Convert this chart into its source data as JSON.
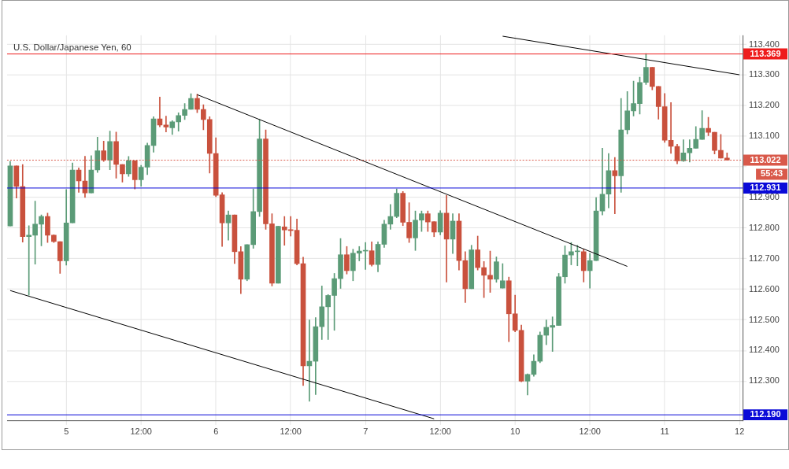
{
  "chart_data": {
    "type": "candlestick",
    "title": "U.S. Dollar/Japanese Yen, 60",
    "categories": [
      null,
      null,
      null,
      null,
      null,
      null,
      null,
      null,
      null,
      "5",
      null,
      null,
      null,
      null,
      null,
      null,
      null,
      null,
      null,
      null,
      null,
      "12:00",
      null,
      null,
      null,
      null,
      null,
      null,
      null,
      null,
      null,
      null,
      null,
      "6",
      null,
      null,
      null,
      null,
      null,
      null,
      null,
      null,
      null,
      null,
      null,
      "12:00",
      null,
      null,
      null,
      null,
      null,
      null,
      null,
      null,
      null,
      null,
      null,
      "7",
      null,
      null,
      null,
      null,
      null,
      null,
      null,
      null,
      null,
      null,
      null,
      "12:00",
      null,
      null,
      null,
      null,
      null,
      null,
      null,
      null,
      null,
      null,
      null,
      "10",
      null,
      null,
      null,
      null,
      null,
      null,
      null,
      null,
      null,
      null,
      null,
      "12:00",
      null,
      null,
      null,
      null,
      null,
      null,
      null,
      null,
      null,
      null,
      null,
      "11",
      null,
      null,
      null,
      null,
      null,
      null,
      null,
      null,
      null,
      null,
      null,
      "12"
    ],
    "ohlc": [
      [
        112.807,
        113.018,
        112.807,
        113.003
      ],
      [
        113.003,
        113.003,
        112.898,
        112.936
      ],
      [
        112.936,
        113.008,
        112.754,
        112.772
      ],
      [
        112.772,
        112.808,
        112.581,
        112.777
      ],
      [
        112.777,
        112.888,
        112.682,
        112.813
      ],
      [
        112.813,
        112.843,
        112.742,
        112.838
      ],
      [
        112.838,
        112.849,
        112.753,
        112.777
      ],
      [
        112.777,
        112.778,
        112.753,
        112.756
      ],
      [
        112.756,
        112.756,
        112.652,
        112.693
      ],
      [
        112.693,
        112.926,
        112.679,
        112.817
      ],
      [
        112.817,
        113.013,
        112.817,
        112.99
      ],
      [
        112.99,
        112.997,
        112.917,
        112.954
      ],
      [
        112.954,
        113.035,
        112.9,
        112.915
      ],
      [
        112.915,
        113.037,
        112.915,
        112.99
      ],
      [
        112.99,
        113.097,
        112.982,
        113.053
      ],
      [
        113.053,
        113.084,
        113.018,
        113.022
      ],
      [
        113.022,
        113.117,
        112.991,
        113.083
      ],
      [
        113.083,
        113.114,
        112.963,
        113.008
      ],
      [
        113.008,
        113.008,
        112.95,
        112.977
      ],
      [
        112.977,
        113.034,
        112.969,
        113.02
      ],
      [
        113.02,
        113.02,
        112.928,
        112.958
      ],
      [
        112.958,
        113.005,
        112.937,
        112.999
      ],
      [
        112.999,
        113.078,
        112.975,
        113.07
      ],
      [
        113.07,
        113.164,
        113.048,
        113.157
      ],
      [
        113.157,
        113.228,
        113.131,
        113.137
      ],
      [
        113.137,
        113.166,
        113.114,
        113.13
      ],
      [
        113.128,
        113.151,
        113.106,
        113.147
      ],
      [
        113.147,
        113.177,
        113.117,
        113.168
      ],
      [
        113.168,
        113.207,
        113.155,
        113.188
      ],
      [
        113.188,
        113.239,
        113.188,
        113.224
      ],
      [
        113.224,
        113.237,
        113.177,
        113.188
      ],
      [
        113.188,
        113.203,
        113.121,
        113.155
      ],
      [
        113.155,
        113.164,
        112.98,
        113.044
      ],
      [
        113.044,
        113.095,
        112.903,
        112.907
      ],
      [
        112.909,
        112.916,
        112.74,
        112.817
      ],
      [
        112.817,
        112.856,
        112.761,
        112.843
      ],
      [
        112.843,
        112.843,
        112.684,
        112.723
      ],
      [
        112.723,
        112.74,
        112.586,
        112.633
      ],
      [
        112.633,
        112.746,
        112.628,
        112.746
      ],
      [
        112.746,
        112.928,
        112.734,
        112.854
      ],
      [
        112.854,
        113.155,
        112.838,
        113.091
      ],
      [
        113.091,
        113.121,
        112.796,
        112.814
      ],
      [
        112.814,
        112.847,
        112.611,
        112.62
      ],
      [
        112.62,
        112.806,
        112.62,
        112.806
      ],
      [
        112.804,
        112.838,
        112.744,
        112.794
      ],
      [
        112.795,
        112.838,
        112.774,
        112.792
      ],
      [
        112.793,
        112.83,
        112.68,
        112.684
      ],
      [
        112.684,
        112.705,
        112.286,
        112.35
      ],
      [
        112.35,
        112.5,
        112.234,
        112.365
      ],
      [
        112.365,
        112.508,
        112.256,
        112.478
      ],
      [
        112.478,
        112.611,
        112.436,
        112.543
      ],
      [
        112.543,
        112.583,
        112.436,
        112.58
      ],
      [
        112.58,
        112.652,
        112.466,
        112.635
      ],
      [
        112.635,
        112.766,
        112.603,
        112.713
      ],
      [
        112.713,
        112.74,
        112.65,
        112.661
      ],
      [
        112.661,
        112.731,
        112.628,
        112.718
      ],
      [
        112.718,
        112.74,
        112.693,
        112.725
      ],
      [
        112.725,
        112.753,
        112.665,
        112.726
      ],
      [
        112.726,
        112.755,
        112.676,
        112.681
      ],
      [
        112.681,
        112.755,
        112.657,
        112.747
      ],
      [
        112.747,
        112.826,
        112.737,
        112.813
      ],
      [
        112.813,
        112.877,
        112.796,
        112.838
      ],
      [
        112.838,
        112.928,
        112.834,
        112.914
      ],
      [
        112.914,
        112.92,
        112.808,
        112.819
      ],
      [
        112.819,
        112.883,
        112.753,
        112.768
      ],
      [
        112.768,
        112.856,
        112.727,
        112.826
      ],
      [
        112.826,
        112.856,
        112.789,
        112.847
      ],
      [
        112.847,
        112.856,
        112.789,
        112.82
      ],
      [
        112.821,
        112.821,
        112.772,
        112.787
      ],
      [
        112.787,
        112.857,
        112.778,
        112.849
      ],
      [
        112.849,
        112.907,
        112.624,
        112.764
      ],
      [
        112.764,
        112.847,
        112.717,
        112.823
      ],
      [
        112.823,
        112.847,
        112.663,
        112.694
      ],
      [
        112.694,
        112.723,
        112.557,
        112.602
      ],
      [
        112.602,
        112.744,
        112.602,
        112.729
      ],
      [
        112.729,
        112.774,
        112.663,
        112.671
      ],
      [
        112.671,
        112.691,
        112.573,
        112.646
      ],
      [
        112.646,
        112.725,
        112.59,
        112.633
      ],
      [
        112.633,
        112.706,
        112.623,
        112.69
      ],
      [
        112.604,
        112.684,
        112.604,
        112.628
      ],
      [
        112.628,
        112.64,
        112.429,
        112.52
      ],
      [
        112.52,
        112.581,
        112.461,
        112.466
      ],
      [
        112.466,
        112.483,
        112.298,
        112.3
      ],
      [
        112.3,
        112.324,
        112.255,
        112.322
      ],
      [
        112.322,
        112.386,
        112.316,
        112.365
      ],
      [
        112.365,
        112.461,
        112.36,
        112.45
      ],
      [
        112.45,
        112.5,
        112.419,
        112.476
      ],
      [
        112.476,
        112.51,
        112.397,
        112.482
      ],
      [
        112.482,
        112.652,
        112.482,
        112.641
      ],
      [
        112.641,
        112.742,
        112.62,
        112.712
      ],
      [
        112.712,
        112.753,
        112.68,
        112.723
      ],
      [
        112.723,
        112.744,
        112.677,
        112.723
      ],
      [
        112.723,
        112.731,
        112.624,
        112.661
      ],
      [
        112.661,
        112.717,
        112.604,
        112.694
      ],
      [
        112.694,
        112.9,
        112.694,
        112.856
      ],
      [
        112.856,
        113.061,
        112.843,
        112.911
      ],
      [
        112.911,
        113.044,
        112.866,
        112.988
      ],
      [
        112.988,
        113.031,
        112.847,
        112.971
      ],
      [
        112.971,
        113.224,
        112.917,
        113.121
      ],
      [
        113.121,
        113.246,
        113.108,
        113.183
      ],
      [
        113.183,
        113.28,
        113.166,
        113.207
      ],
      [
        113.207,
        113.293,
        113.173,
        113.276
      ],
      [
        113.276,
        113.37,
        113.269,
        113.325
      ],
      [
        113.325,
        113.325,
        113.252,
        113.263
      ],
      [
        113.263,
        113.263,
        113.156,
        113.197
      ],
      [
        113.197,
        113.24,
        113.08,
        113.087
      ],
      [
        113.087,
        113.21,
        113.044,
        113.067
      ],
      [
        113.067,
        113.074,
        113.01,
        113.02
      ],
      [
        113.02,
        113.089,
        113.018,
        113.046
      ],
      [
        113.046,
        113.089,
        113.016,
        113.061
      ],
      [
        113.061,
        113.132,
        113.061,
        113.09
      ],
      [
        113.09,
        113.184,
        113.09,
        113.126
      ],
      [
        113.126,
        113.162,
        113.102,
        113.113
      ],
      [
        113.113,
        113.113,
        113.042,
        113.054
      ],
      [
        113.054,
        113.106,
        113.029,
        113.029
      ],
      [
        113.029,
        113.046,
        113.022,
        113.022
      ],
      null,
      null
    ],
    "colors": [
      "#5b9b77",
      "#c9513d",
      "#c9513d",
      "#5b9b77",
      "#5b9b77",
      "#5b9b77",
      "#c9513d",
      "#c9513d",
      "#c9513d",
      "#5b9b77",
      "#5b9b77",
      "#c9513d",
      "#c9513d",
      "#5b9b77",
      "#5b9b77",
      "#c9513d",
      "#5b9b77",
      "#c9513d",
      "#c9513d",
      "#5b9b77",
      "#c9513d",
      "#5b9b77",
      "#5b9b77",
      "#5b9b77",
      "#c9513d",
      "#c9513d",
      "#5b9b77",
      "#5b9b77",
      "#5b9b77",
      "#5b9b77",
      "#c9513d",
      "#c9513d",
      "#c9513d",
      "#c9513d",
      "#c9513d",
      "#5b9b77",
      "#c9513d",
      "#c9513d",
      "#5b9b77",
      "#5b9b77",
      "#5b9b77",
      "#c9513d",
      "#c9513d",
      "#5b9b77",
      "#c9513d",
      "#c9513d",
      "#c9513d",
      "#c9513d",
      "#5b9b77",
      "#5b9b77",
      "#5b9b77",
      "#5b9b77",
      "#5b9b77",
      "#5b9b77",
      "#c9513d",
      "#5b9b77",
      "#5b9b77",
      "#5b9b77",
      "#c9513d",
      "#5b9b77",
      "#5b9b77",
      "#5b9b77",
      "#5b9b77",
      "#c9513d",
      "#c9513d",
      "#5b9b77",
      "#5b9b77",
      "#c9513d",
      "#c9513d",
      "#5b9b77",
      "#c9513d",
      "#5b9b77",
      "#c9513d",
      "#c9513d",
      "#5b9b77",
      "#c9513d",
      "#c9513d",
      "#c9513d",
      "#5b9b77",
      "#5b9b77",
      "#c9513d",
      "#c9513d",
      "#c9513d",
      "#5b9b77",
      "#5b9b77",
      "#5b9b77",
      "#5b9b77",
      "#5b9b77",
      "#5b9b77",
      "#5b9b77",
      "#5b9b77",
      "#5b9b77",
      "#c9513d",
      "#5b9b77",
      "#5b9b77",
      "#5b9b77",
      "#5b9b77",
      "#c9513d",
      "#5b9b77",
      "#5b9b77",
      "#5b9b77",
      "#5b9b77",
      "#5b9b77",
      "#c9513d",
      "#c9513d",
      "#c9513d",
      "#c9513d",
      "#c9513d",
      "#5b9b77",
      "#5b9b77",
      "#5b9b77",
      "#5b9b77",
      "#c9513d",
      "#c9513d",
      "#c9513d",
      "#c9513d",
      null,
      null
    ],
    "series": [
      {
        "type": "line",
        "color": "#000000",
        "values": [
          null,
          null,
          null,
          null,
          null,
          null,
          null,
          null,
          null,
          null,
          null,
          null,
          null,
          null,
          null,
          null,
          null,
          null,
          null,
          null,
          null,
          null,
          null,
          null,
          null,
          null,
          null,
          null,
          null,
          null,
          null,
          null,
          null,
          null,
          null,
          null,
          null,
          null,
          null,
          null,
          null,
          null,
          null,
          null,
          null,
          null,
          null,
          null,
          null,
          null,
          null,
          null,
          null,
          null,
          null,
          null,
          null,
          null,
          null,
          null,
          null,
          null,
          null,
          null,
          null,
          null,
          null,
          null,
          null,
          null,
          null,
          null,
          null,
          null,
          null,
          null,
          null,
          null,
          null,
          113.427,
          null,
          null,
          null,
          null,
          null,
          null,
          null,
          null,
          null,
          null,
          null,
          null,
          null,
          null,
          null,
          null,
          null,
          null,
          null,
          null,
          null,
          null,
          null,
          null,
          null,
          null,
          null,
          null,
          null,
          null,
          null,
          null,
          null,
          null,
          null,
          null,
          null,
          113.301
        ]
      },
      {
        "type": "line",
        "color": "#000000",
        "values": [
          null,
          null,
          null,
          null,
          null,
          null,
          null,
          null,
          null,
          null,
          null,
          null,
          null,
          null,
          null,
          null,
          null,
          null,
          null,
          null,
          null,
          null,
          null,
          null,
          null,
          null,
          null,
          null,
          null,
          null,
          113.236,
          null,
          null,
          null,
          null,
          null,
          null,
          null,
          null,
          null,
          null,
          null,
          null,
          null,
          null,
          null,
          null,
          null,
          null,
          null,
          null,
          null,
          null,
          null,
          null,
          null,
          null,
          null,
          null,
          null,
          null,
          null,
          null,
          null,
          null,
          null,
          null,
          null,
          null,
          null,
          null,
          null,
          null,
          null,
          null,
          null,
          null,
          null,
          null,
          null,
          null,
          null,
          null,
          null,
          null,
          null,
          null,
          null,
          null,
          null,
          null,
          null,
          null,
          null,
          null,
          null,
          null,
          null,
          null,
          112.675,
          null,
          null,
          null,
          null,
          null,
          null,
          null,
          null,
          null,
          null,
          null,
          null,
          null,
          null,
          null,
          null,
          null,
          null
        ]
      },
      {
        "type": "line",
        "color": "#000000",
        "values": [
          112.596,
          null,
          null,
          null,
          null,
          null,
          null,
          null,
          null,
          null,
          null,
          null,
          null,
          null,
          null,
          null,
          null,
          null,
          null,
          null,
          null,
          null,
          null,
          null,
          null,
          null,
          null,
          null,
          null,
          null,
          null,
          null,
          null,
          null,
          null,
          null,
          null,
          null,
          null,
          null,
          null,
          null,
          null,
          null,
          null,
          null,
          null,
          null,
          null,
          null,
          null,
          null,
          null,
          null,
          null,
          null,
          null,
          null,
          null,
          null,
          null,
          null,
          null,
          null,
          null,
          null,
          null,
          null,
          112.177,
          null,
          null,
          null,
          null,
          null,
          null,
          null,
          null,
          null,
          null,
          null,
          null,
          null,
          null,
          null,
          null,
          null,
          null,
          null,
          null,
          null,
          null,
          null,
          null,
          null,
          null,
          null,
          null,
          null,
          null,
          null,
          null,
          null,
          null,
          null,
          null,
          null,
          null,
          null,
          null,
          null,
          null,
          null,
          null,
          null,
          null,
          null,
          null,
          null
        ]
      }
    ],
    "ylim": [
      112.17,
      113.43
    ],
    "yticks": [
      {
        "value": 112.3,
        "label": "112.300"
      },
      {
        "value": 112.4,
        "label": "112.400"
      },
      {
        "value": 112.5,
        "label": "112.500"
      },
      {
        "value": 112.6,
        "label": "112.600"
      },
      {
        "value": 112.7,
        "label": "112.700"
      },
      {
        "value": 112.8,
        "label": "112.800"
      },
      {
        "value": 112.9,
        "label": "112.900"
      },
      {
        "value": 113.0,
        "label": null
      },
      {
        "value": 113.1,
        "label": "113.100"
      },
      {
        "value": 113.2,
        "label": "113.200"
      },
      {
        "value": 113.3,
        "label": "113.300"
      },
      {
        "value": 113.4,
        "label": "113.400"
      }
    ],
    "ref_lines": [
      {
        "axis": "y",
        "value": 113.369,
        "label": "113.369",
        "color": "#ee1c1c"
      },
      {
        "axis": "y",
        "value": 113.022,
        "label": "113.022",
        "color": "#d9594a",
        "line_style": "dotted"
      },
      {
        "axis": "y",
        "value": 112.931,
        "label": "112.931",
        "color": "#0a0ad8"
      },
      {
        "axis": "y",
        "value": 112.19,
        "label": "112.190",
        "color": "#0a0ad8"
      }
    ],
    "annotations": [
      "55:43"
    ],
    "grid": true,
    "legend": false
  }
}
